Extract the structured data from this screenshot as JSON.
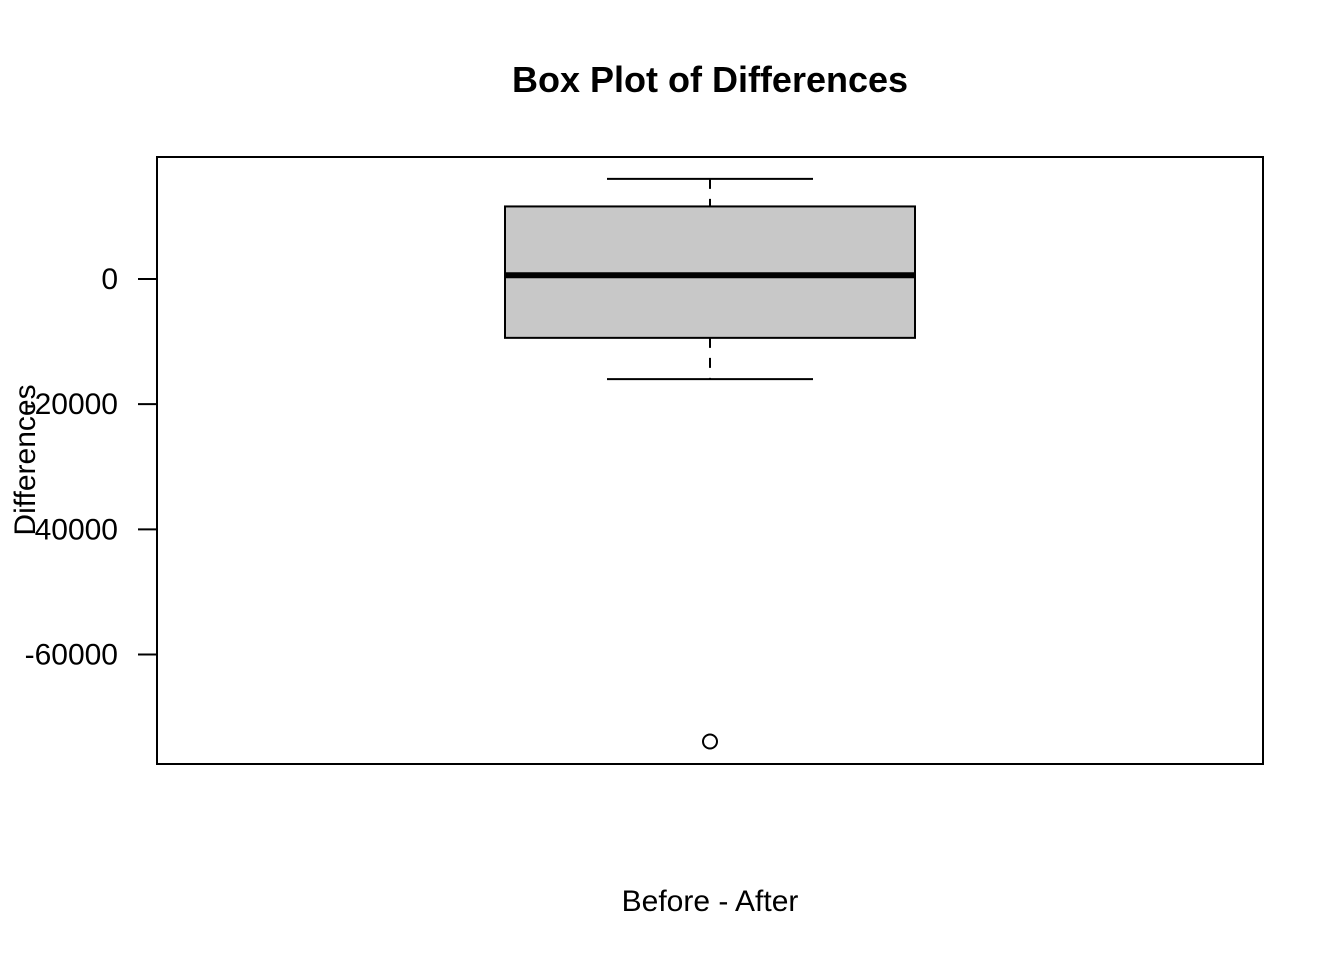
{
  "chart_data": {
    "type": "box",
    "title": "Box Plot of Differences",
    "xlabel": "Before - After",
    "ylabel": "Differences",
    "ylim": [
      -77500,
      19500
    ],
    "yticks": [
      0,
      -20000,
      -40000,
      -60000
    ],
    "ytick_labels": [
      "0",
      "-20000",
      "-40000",
      "-60000"
    ],
    "box": {
      "min": -16000,
      "q1": -9400,
      "median": 600,
      "q3": 11600,
      "max": 16000,
      "outliers": [
        -73900
      ]
    },
    "grid": false,
    "colors": {
      "box_fill": "#c8c8c8",
      "stroke": "#000000"
    }
  }
}
